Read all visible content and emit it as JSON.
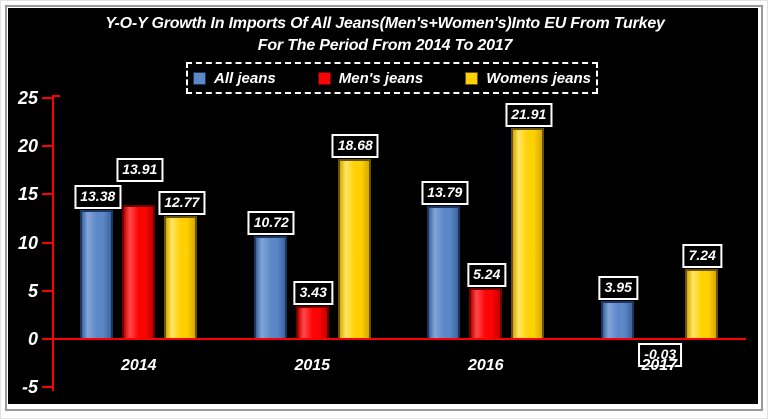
{
  "title": {
    "line1": "Y-O-Y Growth In Imports Of All Jeans(Men's+Women's)Into EU From Turkey",
    "line2": "For The Period From 2014 To 2017"
  },
  "legend": {
    "items": [
      {
        "label": "All jeans",
        "color": "#5d88c8",
        "border": "#1c3560"
      },
      {
        "label": "Men's jeans",
        "color": "#fb0404",
        "border": "#6e0000"
      },
      {
        "label": "Womens jeans",
        "color": "#ffd103",
        "border": "#665200"
      }
    ]
  },
  "chart_data": {
    "type": "bar",
    "title": "Y-O-Y Growth In Imports Of All Jeans(Men's+Women's)Into EU From Turkey For The Period From 2014 To 2017",
    "categories": [
      "2014",
      "2015",
      "2016",
      "2017"
    ],
    "series": [
      {
        "name": "All jeans",
        "color": "#5d88c8",
        "light": "#82a5d8",
        "dark": "#3c66a0",
        "border": "#1c3560",
        "values": [
          13.38,
          10.72,
          13.79,
          3.95
        ]
      },
      {
        "name": "Men's jeans",
        "color": "#fb0404",
        "light": "#ff4a4a",
        "dark": "#c40000",
        "border": "#6e0000",
        "values": [
          13.91,
          3.43,
          5.24,
          -0.03
        ]
      },
      {
        "name": "Womens jeans",
        "color": "#ffd103",
        "light": "#ffe566",
        "dark": "#d8a900",
        "border": "#665200",
        "values": [
          12.77,
          18.68,
          21.91,
          7.24
        ]
      }
    ],
    "ylim": [
      -5,
      25
    ],
    "yticks": [
      25,
      20,
      15,
      10,
      5,
      0,
      -5
    ],
    "axis_color": "#ff0000",
    "background": "#000000",
    "grid": false,
    "legend_position": "top-center",
    "value_label_style": "boxed-white-border",
    "label_dy": [
      [
        0,
        -22,
        0
      ],
      [
        0,
        0,
        0
      ],
      [
        0,
        0,
        0
      ],
      [
        0,
        0,
        0
      ]
    ]
  }
}
